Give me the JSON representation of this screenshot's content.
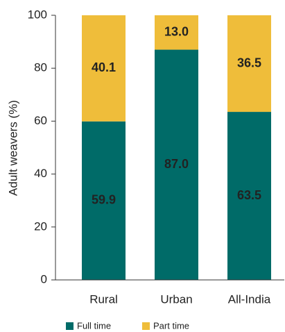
{
  "chart_data": {
    "type": "stacked_bar",
    "categories": [
      "Rural",
      "Urban",
      "All-India"
    ],
    "series": [
      {
        "name": "Full time",
        "color": "#006b68",
        "values": [
          59.9,
          87.0,
          63.5
        ],
        "value_labels": [
          "59.9",
          "87.0",
          "63.5"
        ]
      },
      {
        "name": "Part time",
        "color": "#efbd3a",
        "values": [
          40.1,
          13.0,
          36.5
        ],
        "value_labels": [
          "40.1",
          "13.0",
          "36.5"
        ]
      }
    ],
    "ylabel": "Adult weavers (%)",
    "ylim": [
      0,
      100
    ],
    "yticks": [
      0,
      20,
      40,
      60,
      80,
      100
    ],
    "grid": false
  }
}
